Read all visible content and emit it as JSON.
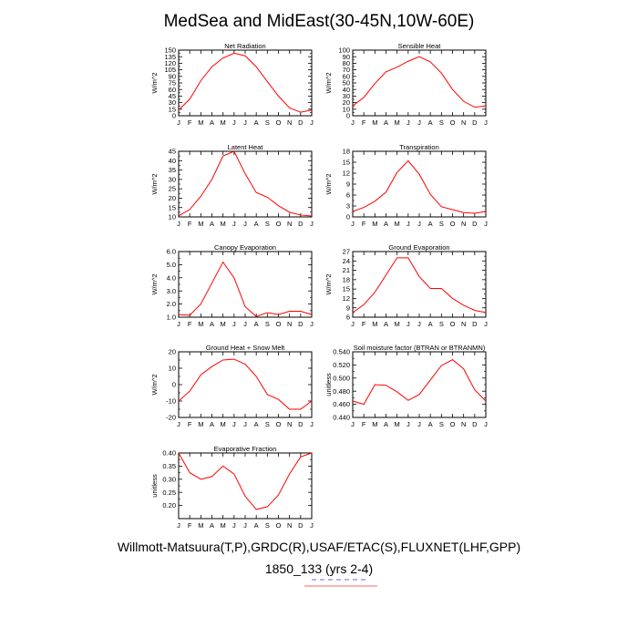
{
  "page": {
    "title": "MedSea and MidEast(30-45N,10W-60E)",
    "footer_line1": "Willmott-Matsuura(T,P),GRDC(R),USAF/ETAC(S),FLUXNET(LHF,GPP)",
    "footer_line2": "1850_133 (yrs 2-4)"
  },
  "colors": {
    "line": "#ff0000",
    "axis": "#000000",
    "legend_dash": "#ff6666"
  },
  "chart_data": [
    {
      "type": "line",
      "title": "Net Radiation",
      "ylabel": "W/m^2",
      "categories": [
        "J",
        "F",
        "M",
        "A",
        "M",
        "J",
        "J",
        "A",
        "S",
        "O",
        "N",
        "D",
        "J"
      ],
      "ylim": [
        0,
        150
      ],
      "yticks": [
        0,
        15,
        30,
        45,
        60,
        75,
        90,
        105,
        120,
        135,
        150
      ],
      "ytick_labels": [
        "0",
        "15",
        "30",
        "45",
        "60",
        "75",
        "90",
        "105",
        "120",
        "135",
        "150"
      ],
      "values": [
        13,
        38,
        80,
        112,
        132,
        143,
        137,
        112,
        78,
        45,
        18,
        8,
        13
      ]
    },
    {
      "type": "line",
      "title": "Sensible Heat",
      "ylabel": "W/m^2",
      "categories": [
        "J",
        "F",
        "M",
        "A",
        "M",
        "J",
        "J",
        "A",
        "S",
        "O",
        "N",
        "D",
        "J"
      ],
      "ylim": [
        0,
        100
      ],
      "yticks": [
        0,
        10,
        20,
        30,
        40,
        50,
        60,
        70,
        80,
        90,
        100
      ],
      "ytick_labels": [
        "0",
        "10",
        "20",
        "30",
        "40",
        "50",
        "60",
        "70",
        "80",
        "90",
        "100"
      ],
      "values": [
        15,
        28,
        49,
        67,
        74,
        83,
        90,
        82,
        65,
        40,
        22,
        13,
        15
      ]
    },
    {
      "type": "line",
      "title": "Latent Heat",
      "ylabel": "W/m^2",
      "categories": [
        "J",
        "F",
        "M",
        "A",
        "M",
        "J",
        "J",
        "A",
        "S",
        "O",
        "N",
        "D",
        "J"
      ],
      "ylim": [
        10,
        45
      ],
      "yticks": [
        10,
        15,
        20,
        25,
        30,
        35,
        40,
        45
      ],
      "ytick_labels": [
        "10",
        "15",
        "20",
        "25",
        "30",
        "35",
        "40",
        "45"
      ],
      "values": [
        10.5,
        14,
        21,
        30,
        42.5,
        45,
        33,
        23,
        20.5,
        16,
        12.5,
        11,
        10.5
      ]
    },
    {
      "type": "line",
      "title": "Transpiration",
      "ylabel": "W/m^2",
      "categories": [
        "J",
        "F",
        "M",
        "A",
        "M",
        "J",
        "J",
        "A",
        "S",
        "O",
        "N",
        "D",
        "J"
      ],
      "ylim": [
        0,
        18
      ],
      "yticks": [
        0,
        3,
        6,
        9,
        12,
        15,
        18
      ],
      "ytick_labels": [
        "0",
        "3",
        "6",
        "9",
        "12",
        "15",
        "18"
      ],
      "values": [
        1.5,
        2.6,
        4.3,
        6.8,
        12.2,
        15.4,
        11.7,
        6.2,
        2.8,
        2.0,
        1.2,
        1.0,
        1.5
      ]
    },
    {
      "type": "line",
      "title": "Canopy Evaporation",
      "ylabel": "W/m^2",
      "categories": [
        "J",
        "F",
        "M",
        "A",
        "M",
        "J",
        "J",
        "A",
        "S",
        "O",
        "N",
        "D",
        "J"
      ],
      "ylim": [
        1.0,
        6.0
      ],
      "yticks": [
        1.0,
        2.0,
        3.0,
        4.0,
        5.0,
        6.0
      ],
      "ytick_labels": [
        "1.0",
        "2.0",
        "3.0",
        "4.0",
        "5.0",
        "6.0"
      ],
      "values": [
        1.2,
        1.15,
        2.0,
        3.6,
        5.2,
        4.0,
        1.8,
        1.05,
        1.35,
        1.2,
        1.45,
        1.45,
        1.2
      ]
    },
    {
      "type": "line",
      "title": "Ground Evaporation",
      "ylabel": "W/m^2",
      "categories": [
        "J",
        "F",
        "M",
        "A",
        "M",
        "J",
        "J",
        "A",
        "S",
        "O",
        "N",
        "D",
        "J"
      ],
      "ylim": [
        6,
        27
      ],
      "yticks": [
        6,
        9,
        12,
        15,
        18,
        21,
        24,
        27
      ],
      "ytick_labels": [
        "6",
        "9",
        "12",
        "15",
        "18",
        "21",
        "24",
        "27"
      ],
      "values": [
        7.5,
        10,
        14,
        19.5,
        25,
        25,
        19,
        15.2,
        15.2,
        12,
        9.8,
        8.2,
        7.5
      ]
    },
    {
      "type": "line",
      "title": "Ground Heat + Snow Melt",
      "ylabel": "W/m^2",
      "categories": [
        "J",
        "F",
        "M",
        "A",
        "M",
        "J",
        "J",
        "A",
        "S",
        "O",
        "N",
        "D",
        "J"
      ],
      "ylim": [
        -20,
        20
      ],
      "yticks": [
        -20,
        -10,
        0,
        10,
        20
      ],
      "ytick_labels": [
        "-20",
        "-10",
        "0",
        "10",
        "20"
      ],
      "values": [
        -10,
        -4,
        6,
        11,
        15,
        15.5,
        12.5,
        5,
        -6,
        -9,
        -15,
        -15,
        -10
      ]
    },
    {
      "type": "line",
      "title": "Soil moisture factor (BTRAN or BTRANMN)",
      "ylabel": "unitless",
      "categories": [
        "J",
        "F",
        "M",
        "A",
        "M",
        "J",
        "J",
        "A",
        "S",
        "O",
        "N",
        "D",
        "J"
      ],
      "ylim": [
        0.44,
        0.54
      ],
      "yticks": [
        0.44,
        0.46,
        0.48,
        0.5,
        0.52,
        0.54
      ],
      "ytick_labels": [
        "0.440",
        "0.460",
        "0.480",
        "0.500",
        "0.520",
        "0.540"
      ],
      "values": [
        0.465,
        0.46,
        0.49,
        0.489,
        0.479,
        0.466,
        0.475,
        0.497,
        0.519,
        0.528,
        0.514,
        0.482,
        0.465
      ]
    },
    {
      "type": "line",
      "title": "Evaporative Fraction",
      "ylabel": "unitless",
      "categories": [
        "J",
        "F",
        "M",
        "A",
        "M",
        "J",
        "J",
        "A",
        "S",
        "O",
        "N",
        "D",
        "J"
      ],
      "ylim": [
        0.15,
        0.4
      ],
      "yticks": [
        0.2,
        0.25,
        0.3,
        0.35,
        0.4
      ],
      "ytick_labels": [
        "0.20",
        "0.25",
        "0.30",
        "0.35",
        "0.40"
      ],
      "values": [
        0.4,
        0.325,
        0.3,
        0.31,
        0.35,
        0.32,
        0.235,
        0.185,
        0.195,
        0.24,
        0.32,
        0.385,
        0.4
      ]
    }
  ]
}
